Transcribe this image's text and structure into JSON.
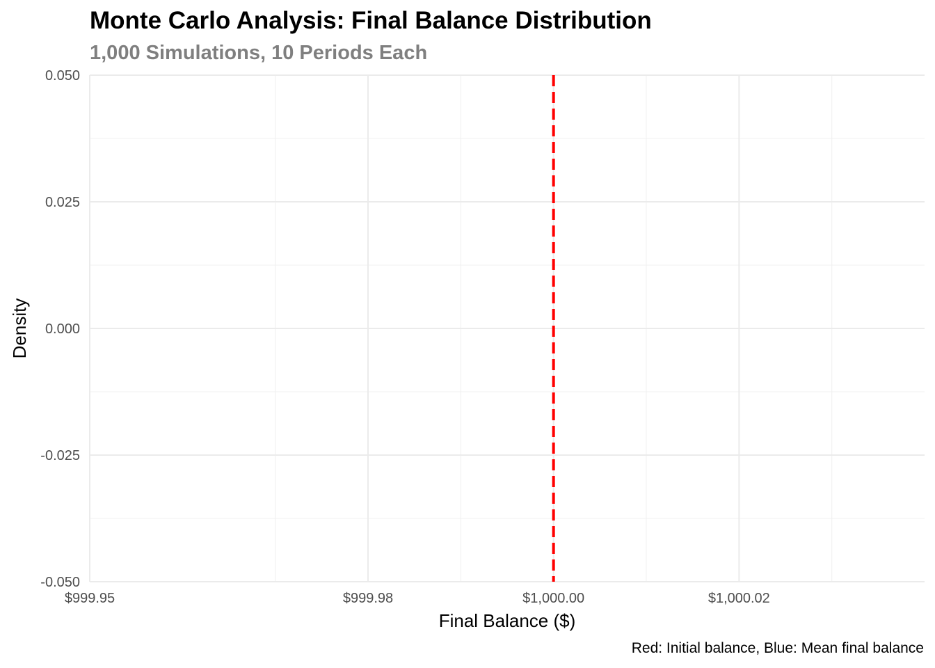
{
  "chart_data": {
    "type": "line",
    "title": "Monte Carlo Analysis: Final Balance Distribution",
    "subtitle": "1,000 Simulations, 10 Periods Each",
    "xlabel": "Final Balance ($)",
    "ylabel": "Density",
    "caption": "Red: Initial balance, Blue: Mean final balance",
    "xlim": [
      999.95,
      1000.04
    ],
    "ylim": [
      -0.05,
      0.05
    ],
    "x_ticks": [
      999.95,
      999.98,
      1000.0,
      1000.02
    ],
    "x_tick_labels": [
      "$999.95",
      "$999.98",
      "$1,000.00",
      "$1,000.02"
    ],
    "x_minor_ticks": [
      999.97,
      999.99,
      1000.01,
      1000.03
    ],
    "y_ticks": [
      -0.05,
      -0.025,
      0,
      0.025,
      0.05
    ],
    "y_tick_labels": [
      "-0.050",
      "-0.025",
      "0.000",
      "0.025",
      "0.050"
    ],
    "y_minor_ticks": [
      -0.0375,
      -0.0125,
      0.0125,
      0.0375
    ],
    "grid": true,
    "series": [],
    "reference_lines": [
      {
        "axis": "x",
        "value": 1000.0,
        "style": "dashed",
        "color": "#ff0000"
      }
    ]
  }
}
